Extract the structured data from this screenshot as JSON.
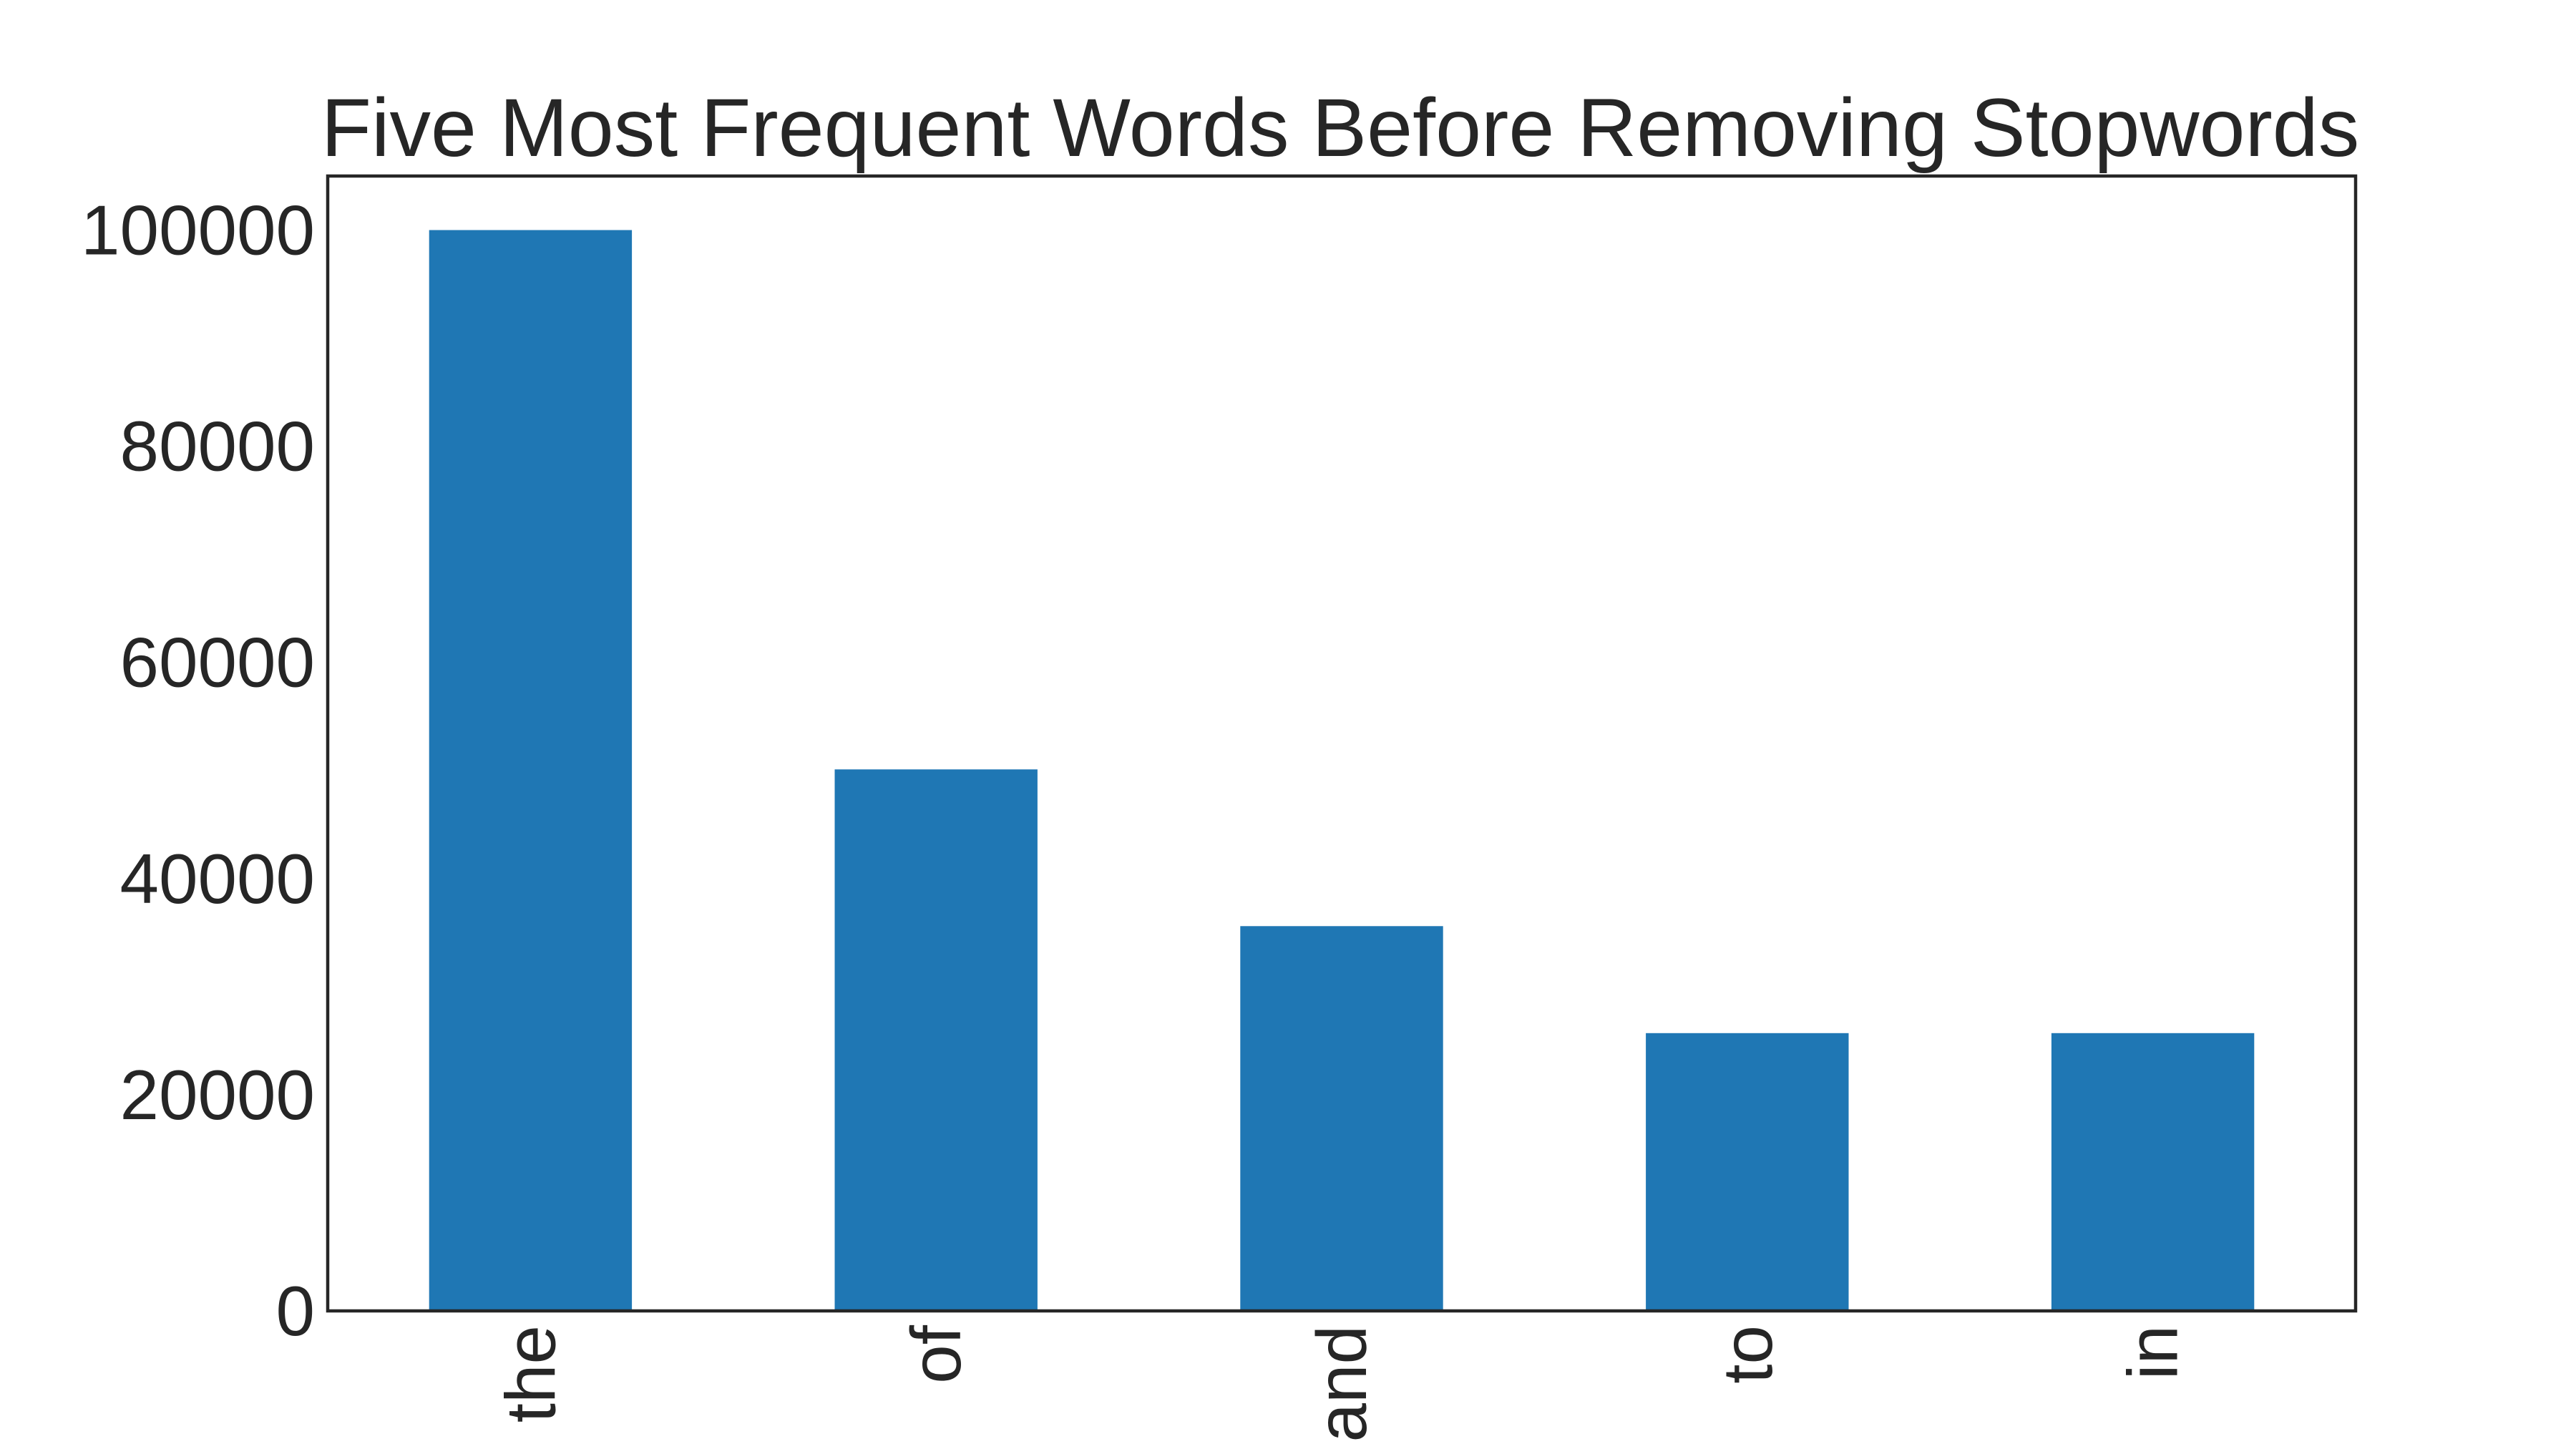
{
  "chart_data": {
    "type": "bar",
    "title": "Five Most Frequent Words Before Removing Stopwords",
    "xlabel": "",
    "ylabel": "",
    "categories": [
      "the",
      "of",
      "and",
      "to",
      "in"
    ],
    "values": [
      100000,
      50100,
      35600,
      25700,
      25700
    ],
    "ylim": [
      0,
      105000
    ],
    "yticks": [
      0,
      20000,
      40000,
      60000,
      80000,
      100000
    ],
    "ytick_labels": [
      "0",
      "20000",
      "40000",
      "60000",
      "80000",
      "100000"
    ],
    "bar_color": "#1f77b4",
    "grid": false,
    "legend": "none"
  }
}
